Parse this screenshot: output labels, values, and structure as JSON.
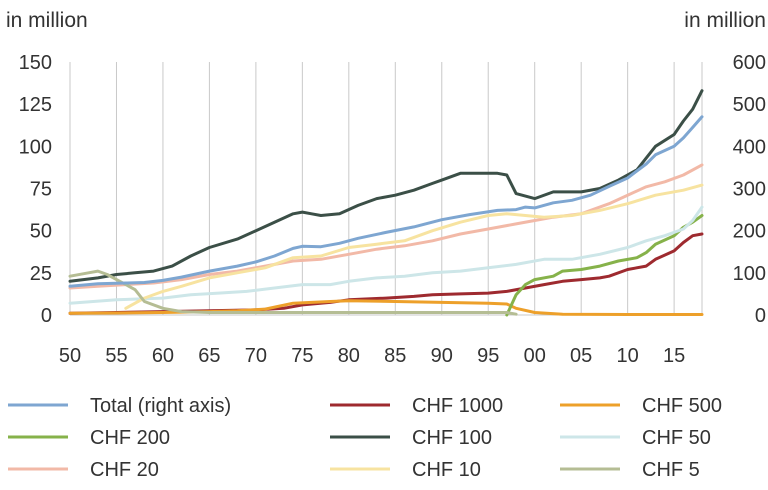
{
  "chart_data": {
    "type": "line",
    "left_axis_label": "in million",
    "right_axis_label": "in million",
    "ylim_left": [
      0,
      150
    ],
    "ylim_right": [
      0,
      600
    ],
    "yticks_left": [
      0,
      25,
      50,
      75,
      100,
      125,
      150
    ],
    "yticks_right": [
      0,
      100,
      200,
      300,
      400,
      500,
      600
    ],
    "xlim": [
      1950,
      2018
    ],
    "xticks": [
      1950,
      1955,
      1960,
      1965,
      1970,
      1975,
      1980,
      1985,
      1990,
      1995,
      2000,
      2005,
      2010,
      2015
    ],
    "xtick_labels": [
      "50",
      "55",
      "60",
      "65",
      "70",
      "75",
      "80",
      "85",
      "90",
      "95",
      "00",
      "05",
      "10",
      "15"
    ],
    "grid": "vertical",
    "legend_position": "bottom",
    "series": [
      {
        "name": "Total (right axis)",
        "axis": "right",
        "color": "#7ea6d1",
        "points": [
          [
            1950,
            68
          ],
          [
            1953,
            74
          ],
          [
            1956,
            76
          ],
          [
            1958,
            77
          ],
          [
            1960,
            82
          ],
          [
            1962,
            90
          ],
          [
            1965,
            104
          ],
          [
            1968,
            116
          ],
          [
            1970,
            126
          ],
          [
            1972,
            140
          ],
          [
            1974,
            158
          ],
          [
            1975,
            163
          ],
          [
            1977,
            162
          ],
          [
            1979,
            170
          ],
          [
            1981,
            182
          ],
          [
            1984,
            196
          ],
          [
            1987,
            209
          ],
          [
            1990,
            226
          ],
          [
            1993,
            238
          ],
          [
            1996,
            248
          ],
          [
            1998,
            250
          ],
          [
            1999,
            256
          ],
          [
            2000,
            254
          ],
          [
            2002,
            266
          ],
          [
            2004,
            272
          ],
          [
            2006,
            284
          ],
          [
            2008,
            305
          ],
          [
            2010,
            325
          ],
          [
            2012,
            358
          ],
          [
            2013,
            380
          ],
          [
            2015,
            400
          ],
          [
            2016,
            420
          ],
          [
            2017,
            445
          ],
          [
            2018,
            470
          ]
        ]
      },
      {
        "name": "CHF 1000",
        "axis": "left",
        "color": "#9e2a2f",
        "points": [
          [
            1950,
            1
          ],
          [
            1955,
            1.5
          ],
          [
            1960,
            2
          ],
          [
            1965,
            2.5
          ],
          [
            1970,
            3
          ],
          [
            1973,
            4
          ],
          [
            1975,
            6
          ],
          [
            1978,
            7.5
          ],
          [
            1980,
            9
          ],
          [
            1984,
            10
          ],
          [
            1987,
            11
          ],
          [
            1989,
            12
          ],
          [
            1992,
            12.5
          ],
          [
            1995,
            13
          ],
          [
            1997,
            14
          ],
          [
            1999,
            16
          ],
          [
            2001,
            18
          ],
          [
            2003,
            20
          ],
          [
            2005,
            21
          ],
          [
            2007,
            22
          ],
          [
            2008,
            23
          ],
          [
            2010,
            27
          ],
          [
            2012,
            29
          ],
          [
            2013,
            33
          ],
          [
            2015,
            38
          ],
          [
            2016,
            43
          ],
          [
            2017,
            47
          ],
          [
            2018,
            48
          ]
        ]
      },
      {
        "name": "CHF 500",
        "axis": "left",
        "color": "#eda02a",
        "points": [
          [
            1950,
            1
          ],
          [
            1955,
            1.2
          ],
          [
            1960,
            1.5
          ],
          [
            1965,
            2
          ],
          [
            1968,
            2.5
          ],
          [
            1971,
            3.5
          ],
          [
            1974,
            7
          ],
          [
            1976,
            7.5
          ],
          [
            1978,
            8
          ],
          [
            1980,
            8.5
          ],
          [
            1985,
            8
          ],
          [
            1990,
            7.5
          ],
          [
            1995,
            7
          ],
          [
            1997,
            6.5
          ],
          [
            1998,
            4
          ],
          [
            2000,
            1.5
          ],
          [
            2003,
            0.5
          ],
          [
            2010,
            0.3
          ],
          [
            2018,
            0.3
          ]
        ]
      },
      {
        "name": "CHF 200",
        "axis": "left",
        "color": "#86b24a",
        "points": [
          [
            1997,
            0
          ],
          [
            1998,
            12
          ],
          [
            1999,
            18
          ],
          [
            2000,
            21
          ],
          [
            2002,
            23
          ],
          [
            2003,
            26
          ],
          [
            2005,
            27
          ],
          [
            2007,
            29
          ],
          [
            2009,
            32
          ],
          [
            2011,
            34
          ],
          [
            2012,
            37
          ],
          [
            2013,
            42
          ],
          [
            2015,
            47
          ],
          [
            2016,
            52
          ],
          [
            2017,
            55
          ],
          [
            2018,
            59
          ]
        ]
      },
      {
        "name": "CHF 100",
        "axis": "left",
        "color": "#3b4f47",
        "points": [
          [
            1950,
            20
          ],
          [
            1953,
            22
          ],
          [
            1955,
            24
          ],
          [
            1957,
            25
          ],
          [
            1959,
            26
          ],
          [
            1961,
            29
          ],
          [
            1963,
            35
          ],
          [
            1965,
            40
          ],
          [
            1968,
            45
          ],
          [
            1970,
            50
          ],
          [
            1972,
            55
          ],
          [
            1974,
            60
          ],
          [
            1975,
            61
          ],
          [
            1976,
            60
          ],
          [
            1977,
            59
          ],
          [
            1979,
            60
          ],
          [
            1981,
            65
          ],
          [
            1983,
            69
          ],
          [
            1985,
            71
          ],
          [
            1987,
            74
          ],
          [
            1989,
            78
          ],
          [
            1990,
            80
          ],
          [
            1991,
            82
          ],
          [
            1992,
            84
          ],
          [
            1994,
            84
          ],
          [
            1996,
            84
          ],
          [
            1997,
            83
          ],
          [
            1998,
            72
          ],
          [
            2000,
            69
          ],
          [
            2002,
            73
          ],
          [
            2005,
            73
          ],
          [
            2007,
            75
          ],
          [
            2009,
            80
          ],
          [
            2011,
            86
          ],
          [
            2012,
            93
          ],
          [
            2013,
            100
          ],
          [
            2015,
            107
          ],
          [
            2016,
            115
          ],
          [
            2017,
            122
          ],
          [
            2018,
            133
          ]
        ]
      },
      {
        "name": "CHF 50",
        "axis": "left",
        "color": "#cde6e8",
        "points": [
          [
            1950,
            7
          ],
          [
            1955,
            9
          ],
          [
            1960,
            10
          ],
          [
            1963,
            12
          ],
          [
            1966,
            13
          ],
          [
            1969,
            14
          ],
          [
            1972,
            16
          ],
          [
            1975,
            18
          ],
          [
            1978,
            18
          ],
          [
            1980,
            20
          ],
          [
            1983,
            22
          ],
          [
            1986,
            23
          ],
          [
            1989,
            25
          ],
          [
            1992,
            26
          ],
          [
            1995,
            28
          ],
          [
            1998,
            30
          ],
          [
            2001,
            33
          ],
          [
            2004,
            33
          ],
          [
            2007,
            36
          ],
          [
            2010,
            40
          ],
          [
            2012,
            44
          ],
          [
            2014,
            47
          ],
          [
            2016,
            51
          ],
          [
            2017,
            56
          ],
          [
            2018,
            64
          ]
        ]
      },
      {
        "name": "CHF 20",
        "axis": "left",
        "color": "#f2b9a7",
        "points": [
          [
            1950,
            16
          ],
          [
            1953,
            17
          ],
          [
            1956,
            18
          ],
          [
            1959,
            19
          ],
          [
            1962,
            21
          ],
          [
            1965,
            24
          ],
          [
            1968,
            26
          ],
          [
            1971,
            29
          ],
          [
            1974,
            32
          ],
          [
            1977,
            33
          ],
          [
            1980,
            36
          ],
          [
            1983,
            39
          ],
          [
            1986,
            41
          ],
          [
            1989,
            44
          ],
          [
            1992,
            48
          ],
          [
            1995,
            51
          ],
          [
            1998,
            54
          ],
          [
            2000,
            56
          ],
          [
            2002,
            58
          ],
          [
            2005,
            60
          ],
          [
            2008,
            66
          ],
          [
            2010,
            71
          ],
          [
            2012,
            76
          ],
          [
            2014,
            79
          ],
          [
            2016,
            83
          ],
          [
            2018,
            89
          ]
        ]
      },
      {
        "name": "CHF 10",
        "axis": "left",
        "color": "#f7e3a0",
        "points": [
          [
            1956,
            4
          ],
          [
            1958,
            10
          ],
          [
            1960,
            14
          ],
          [
            1962,
            17
          ],
          [
            1965,
            22
          ],
          [
            1968,
            25
          ],
          [
            1971,
            28
          ],
          [
            1974,
            34
          ],
          [
            1977,
            35
          ],
          [
            1980,
            40
          ],
          [
            1983,
            42
          ],
          [
            1986,
            44
          ],
          [
            1989,
            50
          ],
          [
            1992,
            55
          ],
          [
            1995,
            59
          ],
          [
            1997,
            60
          ],
          [
            1999,
            59
          ],
          [
            2001,
            58
          ],
          [
            2004,
            59
          ],
          [
            2007,
            62
          ],
          [
            2010,
            66
          ],
          [
            2013,
            71
          ],
          [
            2016,
            74
          ],
          [
            2018,
            77
          ]
        ]
      },
      {
        "name": "CHF 5",
        "axis": "left",
        "color": "#b5bd94",
        "points": [
          [
            1950,
            23
          ],
          [
            1952,
            25
          ],
          [
            1953,
            26
          ],
          [
            1954,
            24
          ],
          [
            1955,
            21
          ],
          [
            1956,
            18
          ],
          [
            1957,
            15
          ],
          [
            1958,
            8
          ],
          [
            1960,
            4
          ],
          [
            1962,
            2
          ],
          [
            1965,
            1.5
          ],
          [
            1970,
            1.5
          ],
          [
            1980,
            1.5
          ],
          [
            1990,
            1.5
          ],
          [
            1997,
            1.5
          ],
          [
            1998,
            0.5
          ]
        ]
      }
    ]
  }
}
